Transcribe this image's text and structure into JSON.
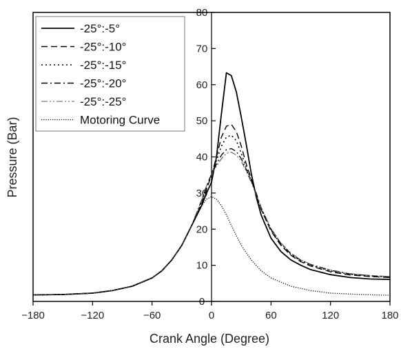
{
  "chart_data": {
    "type": "line",
    "title": "",
    "xlabel": "Crank Angle (Degree)",
    "ylabel": "Pressure (Bar)",
    "xlim": [
      -180,
      180
    ],
    "ylim": [
      0,
      80
    ],
    "xticks": [
      -180,
      -120,
      -60,
      0,
      60,
      120,
      180
    ],
    "yticks": [
      0,
      10,
      20,
      30,
      40,
      50,
      60,
      70,
      80
    ],
    "grid": false,
    "legend_position": "top-left",
    "series": [
      {
        "name": "-25°:-5°",
        "dash": "solid",
        "points": [
          [
            -180,
            1.8
          ],
          [
            -150,
            1.9
          ],
          [
            -120,
            2.3
          ],
          [
            -100,
            3.0
          ],
          [
            -80,
            4.2
          ],
          [
            -60,
            6.5
          ],
          [
            -50,
            8.5
          ],
          [
            -40,
            11.5
          ],
          [
            -30,
            15.5
          ],
          [
            -20,
            21
          ],
          [
            -10,
            26.5
          ],
          [
            -5,
            30
          ],
          [
            0,
            33
          ],
          [
            5,
            40
          ],
          [
            10,
            52
          ],
          [
            15,
            63.3
          ],
          [
            20,
            62.5
          ],
          [
            25,
            58
          ],
          [
            30,
            51
          ],
          [
            35,
            43.5
          ],
          [
            40,
            35.5
          ],
          [
            45,
            29
          ],
          [
            50,
            24
          ],
          [
            60,
            17.5
          ],
          [
            70,
            13.8
          ],
          [
            80,
            11.5
          ],
          [
            90,
            10
          ],
          [
            100,
            8.8
          ],
          [
            120,
            7.4
          ],
          [
            140,
            6.6
          ],
          [
            160,
            6.2
          ],
          [
            180,
            6.1
          ]
        ]
      },
      {
        "name": "-25°:-10°",
        "dash": "dashed",
        "points": [
          [
            -180,
            1.8
          ],
          [
            -150,
            1.9
          ],
          [
            -120,
            2.3
          ],
          [
            -100,
            3.0
          ],
          [
            -80,
            4.2
          ],
          [
            -60,
            6.5
          ],
          [
            -50,
            8.5
          ],
          [
            -40,
            11.5
          ],
          [
            -30,
            15.5
          ],
          [
            -20,
            21
          ],
          [
            -10,
            27
          ],
          [
            -5,
            31
          ],
          [
            0,
            35
          ],
          [
            5,
            40
          ],
          [
            10,
            45.5
          ],
          [
            15,
            48.5
          ],
          [
            20,
            49
          ],
          [
            25,
            47
          ],
          [
            30,
            43
          ],
          [
            35,
            38
          ],
          [
            40,
            34
          ],
          [
            45,
            29.5
          ],
          [
            50,
            25.5
          ],
          [
            60,
            19.5
          ],
          [
            70,
            15.5
          ],
          [
            80,
            12.8
          ],
          [
            90,
            11
          ],
          [
            100,
            9.8
          ],
          [
            120,
            8.2
          ],
          [
            140,
            7.3
          ],
          [
            160,
            6.9
          ],
          [
            180,
            6.6
          ]
        ]
      },
      {
        "name": "-25°:-15°",
        "dash": "dotted",
        "points": [
          [
            -180,
            1.8
          ],
          [
            -150,
            1.9
          ],
          [
            -120,
            2.3
          ],
          [
            -100,
            3.0
          ],
          [
            -80,
            4.2
          ],
          [
            -60,
            6.5
          ],
          [
            -50,
            8.5
          ],
          [
            -40,
            11.5
          ],
          [
            -30,
            15.5
          ],
          [
            -20,
            21
          ],
          [
            -10,
            27.5
          ],
          [
            -5,
            31.5
          ],
          [
            0,
            35
          ],
          [
            5,
            39
          ],
          [
            10,
            43
          ],
          [
            15,
            45.5
          ],
          [
            20,
            46
          ],
          [
            25,
            44.5
          ],
          [
            30,
            41
          ],
          [
            35,
            37
          ],
          [
            40,
            33.5
          ],
          [
            45,
            29.5
          ],
          [
            50,
            25.5
          ],
          [
            60,
            19.8
          ],
          [
            70,
            15.7
          ],
          [
            80,
            13
          ],
          [
            90,
            11.2
          ],
          [
            100,
            10
          ],
          [
            120,
            8.4
          ],
          [
            140,
            7.5
          ],
          [
            160,
            7.0
          ],
          [
            180,
            6.7
          ]
        ]
      },
      {
        "name": "-25°:-20°",
        "dash": "dashdot",
        "points": [
          [
            -180,
            1.8
          ],
          [
            -150,
            1.9
          ],
          [
            -120,
            2.3
          ],
          [
            -100,
            3.0
          ],
          [
            -80,
            4.2
          ],
          [
            -60,
            6.5
          ],
          [
            -50,
            8.5
          ],
          [
            -40,
            11.5
          ],
          [
            -30,
            15.5
          ],
          [
            -20,
            21
          ],
          [
            -10,
            28
          ],
          [
            -5,
            32
          ],
          [
            0,
            35.2
          ],
          [
            5,
            38
          ],
          [
            10,
            40.5
          ],
          [
            15,
            42
          ],
          [
            20,
            42.3
          ],
          [
            25,
            41.5
          ],
          [
            30,
            39.5
          ],
          [
            35,
            36.5
          ],
          [
            40,
            33.5
          ],
          [
            45,
            30
          ],
          [
            50,
            26
          ],
          [
            60,
            20
          ],
          [
            70,
            16
          ],
          [
            80,
            13.2
          ],
          [
            90,
            11.4
          ],
          [
            100,
            10.2
          ],
          [
            120,
            8.6
          ],
          [
            140,
            7.6
          ],
          [
            160,
            7.1
          ],
          [
            180,
            6.8
          ]
        ]
      },
      {
        "name": "-25°:-25°",
        "dash": "dashdotdot",
        "points": [
          [
            -180,
            1.8
          ],
          [
            -150,
            1.9
          ],
          [
            -120,
            2.3
          ],
          [
            -100,
            3.0
          ],
          [
            -80,
            4.2
          ],
          [
            -60,
            6.5
          ],
          [
            -50,
            8.5
          ],
          [
            -40,
            11.5
          ],
          [
            -30,
            15.5
          ],
          [
            -20,
            21
          ],
          [
            -10,
            28
          ],
          [
            -5,
            32
          ],
          [
            0,
            35.3
          ],
          [
            5,
            37.5
          ],
          [
            10,
            39.5
          ],
          [
            15,
            41
          ],
          [
            20,
            41.3
          ],
          [
            25,
            40.5
          ],
          [
            30,
            38.8
          ],
          [
            35,
            36
          ],
          [
            40,
            33
          ],
          [
            45,
            29.5
          ],
          [
            50,
            26
          ],
          [
            60,
            20.2
          ],
          [
            70,
            16.2
          ],
          [
            80,
            13.4
          ],
          [
            90,
            11.5
          ],
          [
            100,
            10.3
          ],
          [
            120,
            8.7
          ],
          [
            140,
            7.7
          ],
          [
            160,
            7.2
          ],
          [
            180,
            6.9
          ]
        ]
      },
      {
        "name": "Motoring Curve",
        "dash": "densedot",
        "points": [
          [
            -180,
            1.8
          ],
          [
            -150,
            1.9
          ],
          [
            -120,
            2.3
          ],
          [
            -100,
            3.0
          ],
          [
            -80,
            4.2
          ],
          [
            -60,
            6.5
          ],
          [
            -50,
            8.5
          ],
          [
            -40,
            11.5
          ],
          [
            -30,
            15.5
          ],
          [
            -20,
            21
          ],
          [
            -15,
            24
          ],
          [
            -10,
            26.5
          ],
          [
            -5,
            28.3
          ],
          [
            0,
            29
          ],
          [
            5,
            28.3
          ],
          [
            10,
            26.5
          ],
          [
            15,
            24
          ],
          [
            20,
            21
          ],
          [
            30,
            15.5
          ],
          [
            40,
            11.5
          ],
          [
            50,
            8.5
          ],
          [
            60,
            6.5
          ],
          [
            80,
            4.2
          ],
          [
            100,
            3.0
          ],
          [
            120,
            2.3
          ],
          [
            150,
            1.9
          ],
          [
            180,
            1.7
          ]
        ]
      }
    ]
  }
}
